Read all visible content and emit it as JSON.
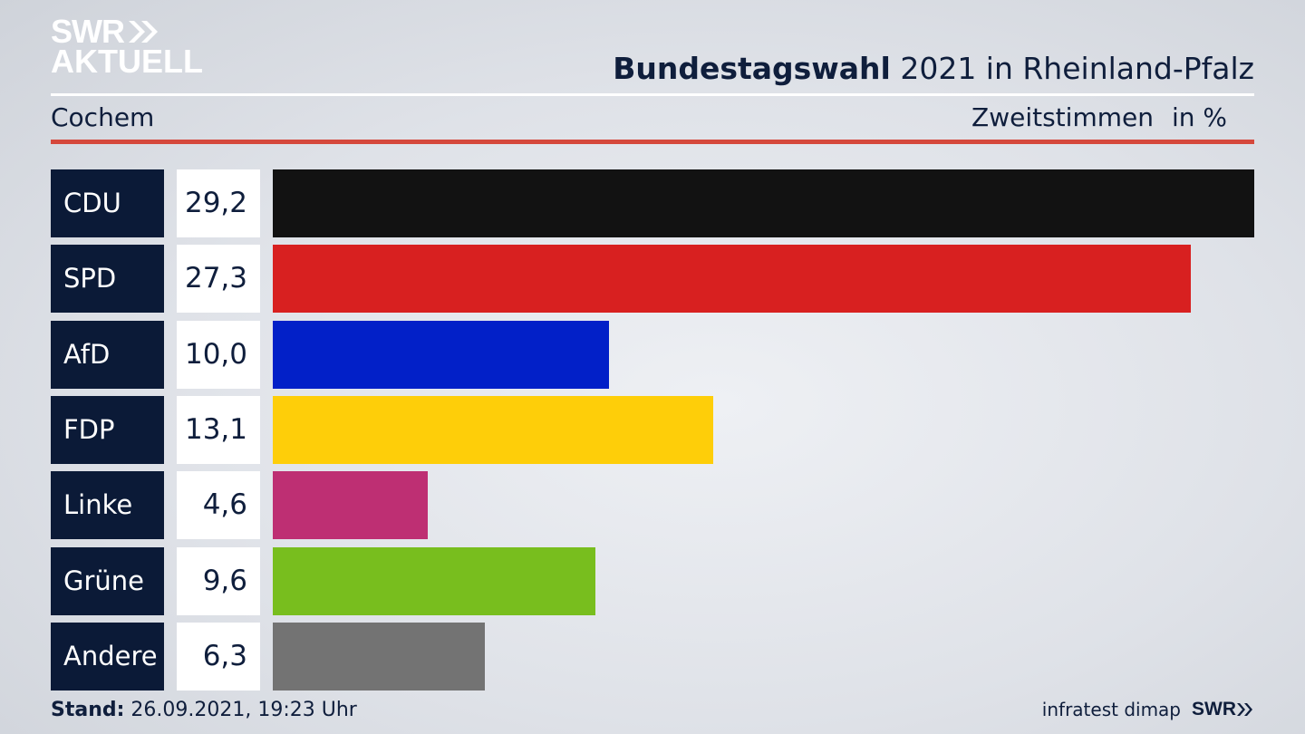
{
  "header": {
    "logo_line1": "SWR",
    "logo_line2": "AKTUELL",
    "title_bold": "Bundestagswahl",
    "title_rest": " 2021 in Rheinland-Pfalz",
    "region": "Cochem",
    "measure": "Zweitstimmen",
    "unit": "in %"
  },
  "chart_data": {
    "type": "bar",
    "orientation": "horizontal",
    "categories": [
      "CDU",
      "SPD",
      "AfD",
      "FDP",
      "Linke",
      "Grüne",
      "Andere"
    ],
    "values": [
      29.2,
      27.3,
      10.0,
      13.1,
      4.6,
      9.6,
      6.3
    ],
    "value_labels": [
      "29,2",
      "27,3",
      "10,0",
      "13,1",
      "4,6",
      "9,6",
      "6,3"
    ],
    "colors": [
      "#121212",
      "#d82020",
      "#0220c8",
      "#fece09",
      "#be2f73",
      "#78be1e",
      "#737373"
    ],
    "title": "Bundestagswahl 2021 in Rheinland-Pfalz",
    "subtitle": "Cochem",
    "xlabel": "Zweitstimmen",
    "ylabel": "",
    "unit": "in %",
    "grid": false,
    "legend": "none"
  },
  "footer": {
    "stand_label": "Stand:",
    "stand_value": " 26.09.2021, 19:23 Uhr",
    "source": "infratest dimap",
    "brand": "SWR"
  }
}
